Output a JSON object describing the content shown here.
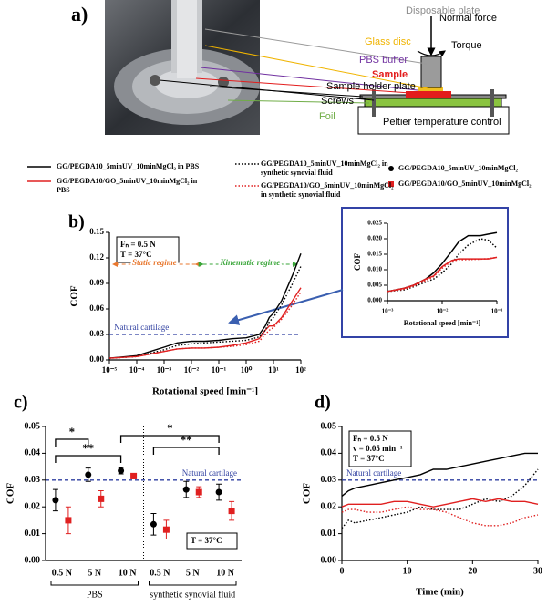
{
  "panel_a": {
    "label": "a)",
    "photo_labels": {
      "disposable_plate": "Disposable plate",
      "glass_disc": "Glass disc",
      "pbs_buffer": "PBS buffer",
      "sample": "Sample",
      "sample_holder_plate": "Sample holder plate",
      "screws": "Screws",
      "foil": "Foil"
    },
    "normal_force": "Normal force",
    "torque": "Torque",
    "peltier": "Peltier temperature control"
  },
  "chart_data": [
    {
      "type": "line",
      "panel_label": "b)",
      "xlog": true,
      "xlabel": "Rotational speed [min⁻¹]",
      "ylabel": "COF",
      "notes": [
        "Fₙ = 0.5 N",
        "T = 37°C"
      ],
      "regimes": {
        "static": "Static regime",
        "kinematic": "Kinematic regime"
      },
      "reference": {
        "value": 0.03,
        "label": "Natural cartilage"
      },
      "xlim": [
        1e-05,
        100
      ],
      "xticks": [
        {
          "value": 1e-05,
          "label": "10⁻⁵"
        },
        {
          "value": 0.0001,
          "label": "10⁻⁴"
        },
        {
          "value": 0.001,
          "label": "10⁻³"
        },
        {
          "value": 0.01,
          "label": "10⁻²"
        },
        {
          "value": 0.1,
          "label": "10⁻¹"
        },
        {
          "value": 1,
          "label": "10⁰"
        },
        {
          "value": 10,
          "label": "10¹"
        },
        {
          "value": 100,
          "label": "10²"
        }
      ],
      "ylim": [
        0,
        0.15
      ],
      "yticks": [
        {
          "value": 0,
          "label": "0.00"
        },
        0.03,
        0.06,
        0.09,
        0.12,
        0.15
      ],
      "x": [
        1e-05,
        0.0001,
        0.001,
        0.003,
        0.01,
        0.03,
        0.1,
        0.3,
        1,
        3,
        5,
        7,
        10,
        20,
        50,
        100
      ],
      "series": [
        {
          "name": "GG/PEGDA10_5minUV_10minMgCl₂  in PBS",
          "color": "#000000",
          "style": "solid",
          "values": [
            0.002,
            0.005,
            0.015,
            0.02,
            0.022,
            0.022,
            0.023,
            0.025,
            0.026,
            0.03,
            0.04,
            0.05,
            0.055,
            0.07,
            0.1,
            0.125
          ]
        },
        {
          "name": "GG/PEGDA10/GO_5minUV_10minMgCl₂ in PBS",
          "color": "#e02020",
          "style": "solid",
          "values": [
            0.002,
            0.004,
            0.01,
            0.013,
            0.014,
            0.014,
            0.015,
            0.017,
            0.02,
            0.025,
            0.035,
            0.04,
            0.04,
            0.05,
            0.07,
            0.085
          ]
        },
        {
          "name": "GG/PEGDA10_5minUV_10minMgCl₂ in synthetic synovial fluid",
          "color": "#000000",
          "style": "dotted",
          "values": [
            0.002,
            0.004,
            0.012,
            0.017,
            0.019,
            0.02,
            0.021,
            0.022,
            0.023,
            0.027,
            0.035,
            0.045,
            0.05,
            0.065,
            0.09,
            0.11
          ]
        },
        {
          "name": "GG/PEGDA10/GO_5minUV_10minMgCl₂ in synthetic synovial fluid",
          "color": "#e02020",
          "style": "dotted",
          "values": [
            0.002,
            0.004,
            0.01,
            0.013,
            0.014,
            0.014,
            0.015,
            0.016,
            0.018,
            0.022,
            0.03,
            0.035,
            0.038,
            0.048,
            0.065,
            0.08
          ]
        }
      ]
    },
    {
      "type": "line",
      "xlog": true,
      "xlabel": "Rotational speed [min⁻¹]",
      "ylabel": "COF",
      "xlim": [
        0.001,
        0.1
      ],
      "xticks": [
        {
          "value": 0.001,
          "label": "10⁻³"
        },
        {
          "value": 0.01,
          "label": "10⁻²"
        },
        {
          "value": 0.1,
          "label": "10⁻¹"
        }
      ],
      "ylim": [
        0,
        0.025
      ],
      "yticks": [
        {
          "value": 0,
          "label": "0.000"
        },
        0.005,
        {
          "value": 0.01,
          "label": "0.010"
        },
        0.015,
        {
          "value": 0.02,
          "label": "0.020"
        },
        0.025
      ],
      "x": [
        0.001,
        0.002,
        0.003,
        0.005,
        0.007,
        0.01,
        0.015,
        0.02,
        0.03,
        0.05,
        0.07,
        0.1
      ],
      "series": [
        {
          "color": "#000000",
          "style": "solid",
          "values": [
            0.003,
            0.004,
            0.005,
            0.007,
            0.009,
            0.012,
            0.016,
            0.019,
            0.021,
            0.021,
            0.0215,
            0.022
          ]
        },
        {
          "color": "#000000",
          "style": "dotted",
          "values": [
            0.003,
            0.0035,
            0.0045,
            0.006,
            0.007,
            0.009,
            0.012,
            0.015,
            0.018,
            0.02,
            0.0195,
            0.017
          ]
        },
        {
          "color": "#e02020",
          "style": "solid",
          "values": [
            0.003,
            0.004,
            0.005,
            0.007,
            0.008,
            0.011,
            0.013,
            0.0135,
            0.0135,
            0.0135,
            0.0135,
            0.014
          ]
        },
        {
          "color": "#e02020",
          "style": "dotted",
          "values": [
            0.003,
            0.0037,
            0.0047,
            0.0065,
            0.0078,
            0.0105,
            0.0128,
            0.0132,
            0.0133,
            0.0134,
            0.0136,
            0.014
          ]
        }
      ]
    },
    {
      "type": "errorscatter",
      "panel_label": "c)",
      "ylabel": "COF",
      "notes": [
        "T = 37°C"
      ],
      "reference": {
        "value": 0.03,
        "label": "Natural cartilage"
      },
      "categories": [
        "0.5 N",
        "5 N",
        "10 N",
        "0.5 N",
        "5 N",
        "10 N"
      ],
      "groups": [
        "PBS",
        "synthetic synovial fluid"
      ],
      "significance": [
        "*",
        "**",
        "*",
        "**"
      ],
      "ylim": [
        0,
        0.05
      ],
      "yticks": [
        {
          "value": 0,
          "label": "0.00"
        },
        0.01,
        0.02,
        0.03,
        0.04,
        0.05
      ],
      "series": [
        {
          "name": "GG/PEGDA10_5minUV_10minMgCl₂",
          "color": "#000000",
          "marker": "circle",
          "values": [
            0.0225,
            0.032,
            0.0335,
            0.0135,
            0.0265,
            0.0255
          ],
          "errors": [
            0.004,
            0.0025,
            0.0012,
            0.004,
            0.003,
            0.003
          ]
        },
        {
          "name": "GG/PEGDA10/GO_5minUV_10minMgCl₂",
          "color": "#e02020",
          "marker": "square",
          "values": [
            0.015,
            0.023,
            0.0315,
            0.0115,
            0.0255,
            0.0185
          ],
          "errors": [
            0.005,
            0.003,
            0.001,
            0.0035,
            0.002,
            0.0035
          ]
        }
      ]
    },
    {
      "type": "line",
      "panel_label": "d)",
      "xlabel": "Time (min)",
      "ylabel": "COF",
      "notes": [
        "Fₙ = 0.5 N",
        "v = 0.05 min⁻¹",
        "T = 37°C"
      ],
      "reference": {
        "value": 0.03,
        "label": "Natural cartilage"
      },
      "xlim": [
        0,
        30
      ],
      "xticks": [
        0,
        10,
        20,
        30
      ],
      "ylim": [
        0,
        0.05
      ],
      "yticks": [
        {
          "value": 0,
          "label": "0.00"
        },
        0.01,
        0.02,
        0.03,
        0.04,
        0.05
      ],
      "x": [
        0,
        1,
        2,
        4,
        6,
        8,
        10,
        12,
        14,
        16,
        18,
        20,
        22,
        24,
        26,
        28,
        30
      ],
      "series": [
        {
          "color": "#000000",
          "style": "solid",
          "values": [
            0.024,
            0.026,
            0.027,
            0.028,
            0.029,
            0.03,
            0.031,
            0.032,
            0.034,
            0.034,
            0.035,
            0.036,
            0.037,
            0.038,
            0.039,
            0.04,
            0.04
          ]
        },
        {
          "color": "#000000",
          "style": "dotted",
          "values": [
            0.012,
            0.015,
            0.014,
            0.015,
            0.016,
            0.017,
            0.018,
            0.02,
            0.019,
            0.019,
            0.019,
            0.021,
            0.023,
            0.022,
            0.024,
            0.028,
            0.034
          ]
        },
        {
          "color": "#e02020",
          "style": "solid",
          "values": [
            0.02,
            0.021,
            0.021,
            0.021,
            0.021,
            0.022,
            0.022,
            0.021,
            0.02,
            0.021,
            0.022,
            0.023,
            0.022,
            0.023,
            0.022,
            0.022,
            0.021
          ]
        },
        {
          "color": "#e02020",
          "style": "dotted",
          "values": [
            0.018,
            0.019,
            0.019,
            0.018,
            0.018,
            0.019,
            0.02,
            0.019,
            0.019,
            0.018,
            0.016,
            0.014,
            0.013,
            0.013,
            0.014,
            0.016,
            0.017
          ]
        }
      ]
    }
  ]
}
